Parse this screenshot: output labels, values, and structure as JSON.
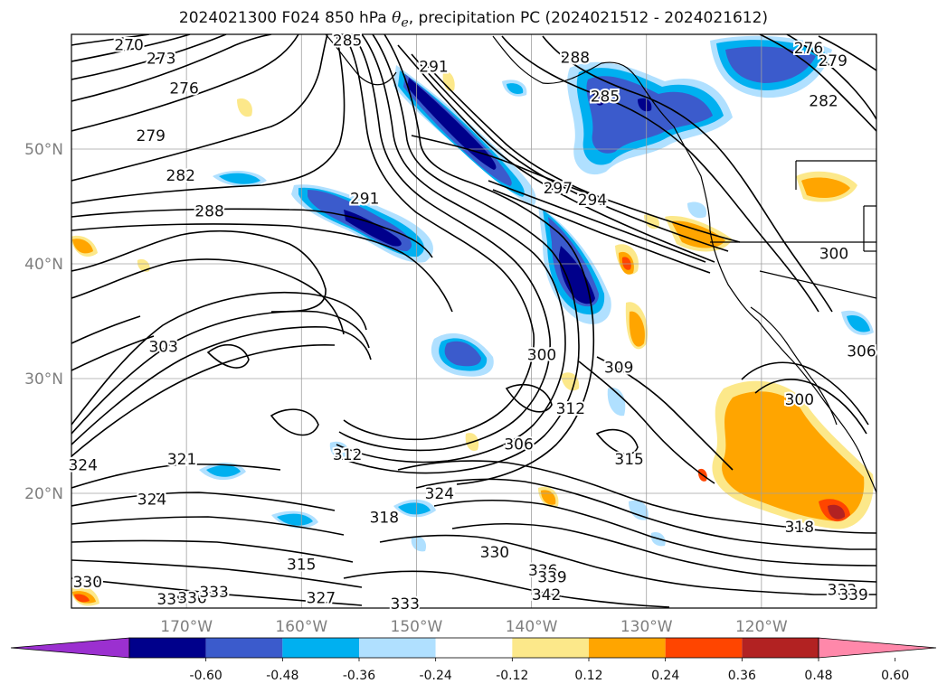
{
  "title": {
    "prefix": "2024021300 F024 850 hPa ",
    "symbol": "θ",
    "subscript": "e",
    "suffix": ", precipitation PC (2024021512 - 2024021612)"
  },
  "map": {
    "projection": "lat-lon",
    "lon_range": [
      -180,
      -110
    ],
    "lat_range": [
      10,
      60
    ],
    "grid": true,
    "lon_ticks": [
      {
        "label": "170°W",
        "value": -170
      },
      {
        "label": "160°W",
        "value": -160
      },
      {
        "label": "150°W",
        "value": -150
      },
      {
        "label": "140°W",
        "value": -140
      },
      {
        "label": "130°W",
        "value": -130
      },
      {
        "label": "120°W",
        "value": -120
      }
    ],
    "lat_ticks": [
      {
        "label": "50°N",
        "value": 50
      },
      {
        "label": "40°N",
        "value": 40
      },
      {
        "label": "30°N",
        "value": 30
      },
      {
        "label": "20°N",
        "value": 20
      }
    ],
    "contour_labels": [
      {
        "text": "270",
        "lon": -175.0,
        "lat": 59.1
      },
      {
        "text": "273",
        "lon": -172.2,
        "lat": 57.9
      },
      {
        "text": "276",
        "lon": -170.2,
        "lat": 55.3
      },
      {
        "text": "279",
        "lon": -173.1,
        "lat": 51.2
      },
      {
        "text": "282",
        "lon": -170.5,
        "lat": 47.7
      },
      {
        "text": "288",
        "lon": -168.0,
        "lat": 44.6
      },
      {
        "text": "285",
        "lon": -156.0,
        "lat": 59.5
      },
      {
        "text": "291",
        "lon": -148.5,
        "lat": 57.2
      },
      {
        "text": "291",
        "lon": -154.5,
        "lat": 45.7
      },
      {
        "text": "288",
        "lon": -136.2,
        "lat": 58.0
      },
      {
        "text": "285",
        "lon": -133.6,
        "lat": 54.6
      },
      {
        "text": "297",
        "lon": -137.7,
        "lat": 46.6
      },
      {
        "text": "294",
        "lon": -134.7,
        "lat": 45.6
      },
      {
        "text": "276",
        "lon": -115.9,
        "lat": 58.8
      },
      {
        "text": "279",
        "lon": -113.8,
        "lat": 57.7
      },
      {
        "text": "282",
        "lon": -114.6,
        "lat": 54.2
      },
      {
        "text": "300",
        "lon": -113.7,
        "lat": 40.9
      },
      {
        "text": "303",
        "lon": -172.0,
        "lat": 32.8
      },
      {
        "text": "300",
        "lon": -139.1,
        "lat": 32.1
      },
      {
        "text": "309",
        "lon": -132.4,
        "lat": 31.0
      },
      {
        "text": "312",
        "lon": -136.6,
        "lat": 27.4
      },
      {
        "text": "306",
        "lon": -141.1,
        "lat": 24.3
      },
      {
        "text": "306",
        "lon": -111.3,
        "lat": 32.4
      },
      {
        "text": "300",
        "lon": -116.7,
        "lat": 28.2
      },
      {
        "text": "315",
        "lon": -131.5,
        "lat": 23.0
      },
      {
        "text": "321",
        "lon": -170.4,
        "lat": 23.0
      },
      {
        "text": "324",
        "lon": -179.0,
        "lat": 22.5
      },
      {
        "text": "324",
        "lon": -173.0,
        "lat": 19.5
      },
      {
        "text": "312",
        "lon": -156.0,
        "lat": 23.4
      },
      {
        "text": "324",
        "lon": -148.0,
        "lat": 20.0
      },
      {
        "text": "318",
        "lon": -152.8,
        "lat": 17.9
      },
      {
        "text": "318",
        "lon": -116.7,
        "lat": 17.1
      },
      {
        "text": "315",
        "lon": -160.0,
        "lat": 13.8
      },
      {
        "text": "330",
        "lon": -143.2,
        "lat": 14.9
      },
      {
        "text": "336",
        "lon": -139.0,
        "lat": 13.3
      },
      {
        "text": "339",
        "lon": -138.2,
        "lat": 12.7
      },
      {
        "text": "342",
        "lon": -138.7,
        "lat": 11.2
      },
      {
        "text": "330",
        "lon": -178.6,
        "lat": 12.3
      },
      {
        "text": "339",
        "lon": -171.3,
        "lat": 10.8
      },
      {
        "text": "336",
        "lon": -169.5,
        "lat": 10.9
      },
      {
        "text": "333",
        "lon": -167.6,
        "lat": 11.4
      },
      {
        "text": "327",
        "lon": -158.3,
        "lat": 10.9
      },
      {
        "text": "333",
        "lon": -151.0,
        "lat": 10.4
      },
      {
        "text": "333",
        "lon": -113.0,
        "lat": 11.6
      },
      {
        "text": "339",
        "lon": -112.0,
        "lat": 11.2
      }
    ]
  },
  "colorbar": {
    "ticks": [
      "-0.60",
      "-0.48",
      "-0.36",
      "-0.24",
      "-0.12",
      "0.12",
      "0.24",
      "0.36",
      "0.48",
      "0.60"
    ],
    "colors": [
      "#9b30d0",
      "#00008b",
      "#3b5bcc",
      "#00b0f0",
      "#b0e0ff",
      "#ffffff",
      "#fce88a",
      "#ffa500",
      "#ff4500",
      "#b22222",
      "#ff88aa"
    ]
  }
}
